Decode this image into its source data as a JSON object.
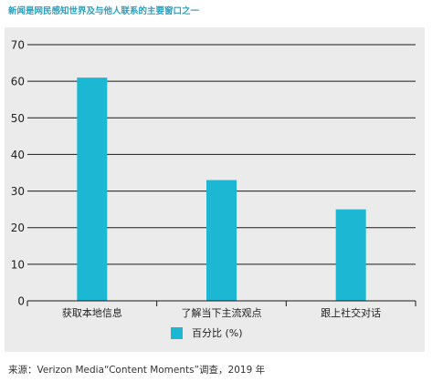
{
  "title": "新闻是网民感知世界及与他人联系的主要窗口之一",
  "source": "来源：Verizon Media“Content Moments”调查，2019 年",
  "colors": {
    "bar": "#1cb8d3",
    "title": "#2a9fbf",
    "panel": "#ecebeb"
  },
  "chart_data": {
    "type": "bar",
    "categories": [
      "获取本地信息",
      "了解当下主流观点",
      "跟上社交对话"
    ],
    "series": [
      {
        "name": "百分比 (%)",
        "values": [
          61,
          33,
          25
        ]
      }
    ],
    "ylim": [
      0,
      70
    ],
    "yticks": [
      0,
      10,
      20,
      30,
      40,
      50,
      60,
      70
    ],
    "grid": true,
    "legend": "bottom-center"
  }
}
